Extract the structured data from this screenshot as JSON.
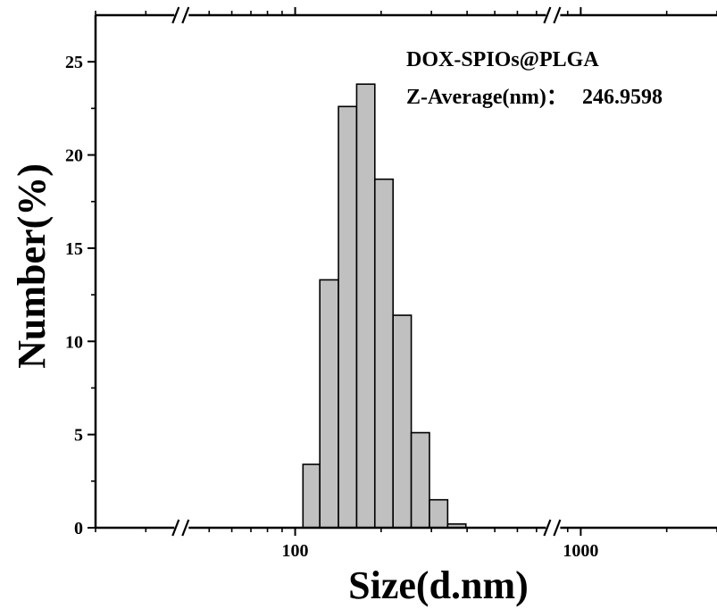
{
  "chart_data": {
    "type": "bar",
    "xlabel": "Size(d.nm)",
    "ylabel": "Number(%)",
    "x_scale": "log",
    "xlim": [
      20,
      3000
    ],
    "ylim": [
      0,
      27.5
    ],
    "x_ticks": [
      100,
      1000
    ],
    "x_tick_labels": [
      "100",
      "1000"
    ],
    "y_ticks": [
      0,
      5,
      10,
      15,
      20,
      25
    ],
    "y_tick_labels": [
      "0",
      "5",
      "10",
      "15",
      "20",
      "25"
    ],
    "axis_breaks": [
      40,
      800
    ],
    "annotations": [
      "DOX-SPIOs@PLGA",
      "Z-Average(nm)：",
      "246.9598"
    ],
    "bar_color": "#c0c0c0",
    "bar_edge_color": "#000000",
    "bins": [
      {
        "x0": 106.5,
        "x1": 122.0,
        "value": 3.4
      },
      {
        "x0": 122.0,
        "x1": 141.8,
        "value": 13.3
      },
      {
        "x0": 141.8,
        "x1": 164.2,
        "value": 22.6
      },
      {
        "x0": 164.2,
        "x1": 190.1,
        "value": 23.8
      },
      {
        "x0": 190.1,
        "x1": 220.2,
        "value": 18.7
      },
      {
        "x0": 220.2,
        "x1": 255.0,
        "value": 11.4
      },
      {
        "x0": 255.0,
        "x1": 295.3,
        "value": 5.1
      },
      {
        "x0": 295.3,
        "x1": 342.0,
        "value": 1.5
      },
      {
        "x0": 342.0,
        "x1": 396.1,
        "value": 0.2
      }
    ]
  }
}
